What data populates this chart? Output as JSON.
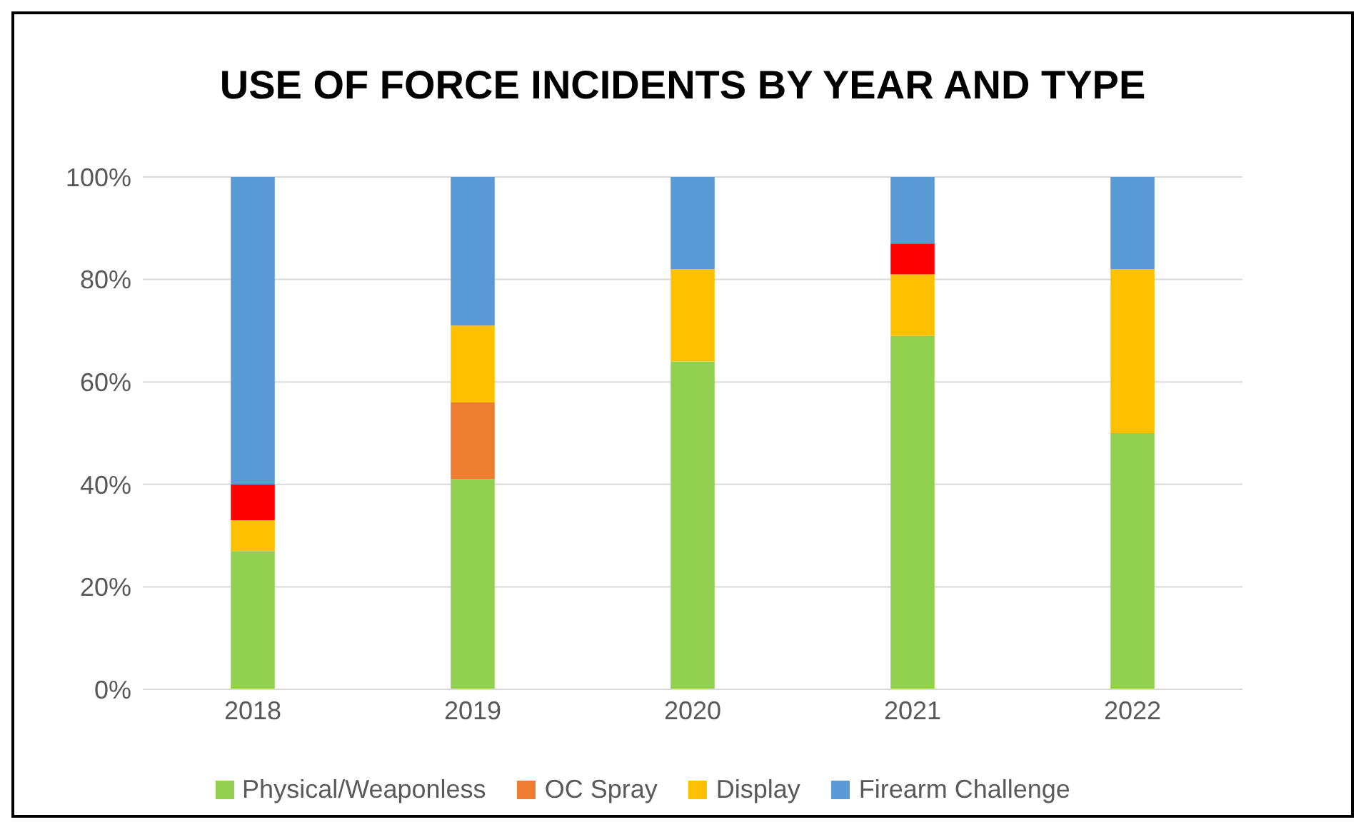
{
  "chart_data": {
    "type": "bar",
    "title": "USE OF FORCE INCIDENTS BY YEAR AND TYPE",
    "stacked": true,
    "categories": [
      "2018",
      "2019",
      "2020",
      "2021",
      "2022"
    ],
    "series": [
      {
        "name": "Physical/Weaponless",
        "color": "#92d050",
        "values": [
          27,
          41,
          64,
          69,
          50
        ]
      },
      {
        "name": "OC Spray",
        "color": "#ed7d31",
        "values": [
          0,
          15,
          0,
          0,
          0
        ]
      },
      {
        "name": "Display",
        "color": "#ffc000",
        "values": [
          6,
          15,
          18,
          12,
          32
        ]
      },
      {
        "color": "#ff0000",
        "values": [
          7,
          0,
          0,
          6,
          0
        ]
      },
      {
        "name": "Firearm Challenge",
        "color": "#5b9bd5",
        "values": [
          60,
          29,
          18,
          13,
          18
        ]
      }
    ],
    "ylim": [
      0,
      100
    ],
    "yticks": [
      {
        "value": 0,
        "label": "0%"
      },
      {
        "value": 20,
        "label": "20%"
      },
      {
        "value": 40,
        "label": "40%"
      },
      {
        "value": 60,
        "label": "60%"
      },
      {
        "value": 80,
        "label": "80%"
      },
      {
        "value": 100,
        "label": "100%"
      }
    ],
    "grid": "y",
    "legend": "bottom"
  }
}
